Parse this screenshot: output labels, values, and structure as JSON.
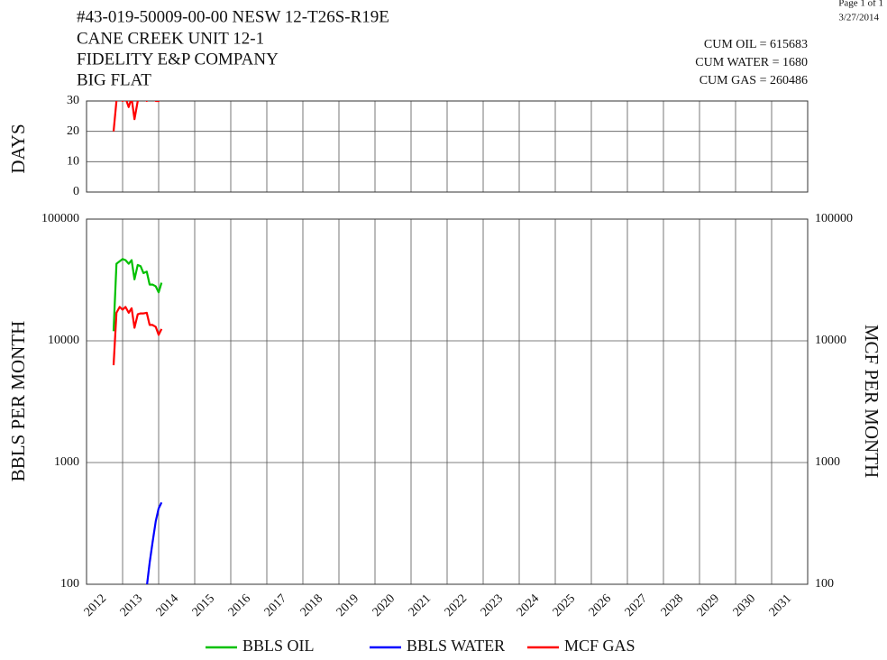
{
  "header": {
    "lines": [
      "#43-019-50009-00-00   NESW 12-T26S-R19E",
      "CANE CREEK UNIT 12-1",
      "FIDELITY E&P COMPANY",
      "BIG FLAT"
    ],
    "page": "Page 1 of 1",
    "date": "3/27/2014",
    "cum": [
      "CUM OIL = 615683",
      "CUM WATER = 1680",
      "CUM GAS = 260486"
    ]
  },
  "chart_data": [
    {
      "type": "line",
      "ylabel": "DAYS",
      "x": [
        2012.75,
        2012.83,
        2012.92,
        2013.0,
        2013.08,
        2013.17,
        2013.25,
        2013.33,
        2013.42,
        2013.5,
        2013.58,
        2013.67,
        2013.75,
        2013.83,
        2013.92,
        2014.0,
        2014.08
      ],
      "values": [
        20,
        30,
        31,
        30,
        31,
        28,
        31,
        24,
        30,
        31,
        31,
        30,
        31,
        31,
        30,
        30,
        31
      ],
      "color": "#ff0000",
      "xlim": [
        2012,
        2032
      ],
      "ylim": [
        0,
        30
      ],
      "yticks": [
        0,
        10,
        20,
        30
      ],
      "grid": true
    },
    {
      "type": "line",
      "ylabel": "BBLS PER MONTH",
      "y2label": "MCF PER MONTH",
      "log": true,
      "x": [
        2012.75,
        2012.83,
        2012.92,
        2013.0,
        2013.08,
        2013.17,
        2013.25,
        2013.33,
        2013.42,
        2013.5,
        2013.58,
        2013.67,
        2013.75,
        2013.83,
        2013.92,
        2014.0,
        2014.08
      ],
      "series": [
        {
          "name": "BBLS OIL",
          "color": "#00c000",
          "values": [
            12000,
            43000,
            45000,
            47000,
            46000,
            43000,
            46000,
            32000,
            42000,
            41000,
            36000,
            37000,
            29000,
            29000,
            28000,
            25000,
            30000
          ]
        },
        {
          "name": "BBLS WATER",
          "color": "#0000ff",
          "values": [
            null,
            null,
            null,
            null,
            null,
            null,
            null,
            null,
            null,
            null,
            90,
            95,
            150,
            220,
            330,
            420,
            470
          ]
        },
        {
          "name": "MCF GAS",
          "color": "#ff0000",
          "axis": "y2",
          "values": [
            6300,
            17000,
            19000,
            18000,
            19000,
            17000,
            18500,
            12800,
            16500,
            16800,
            16800,
            17000,
            13500,
            13500,
            13000,
            11200,
            12500
          ]
        }
      ],
      "xlim": [
        2012,
        2032
      ],
      "xticks": [
        2012,
        2013,
        2014,
        2015,
        2016,
        2017,
        2018,
        2019,
        2020,
        2021,
        2022,
        2023,
        2024,
        2025,
        2026,
        2027,
        2028,
        2029,
        2030,
        2031
      ],
      "ylim": [
        100,
        100000
      ],
      "yticks": [
        100,
        1000,
        10000,
        100000
      ],
      "y2lim": [
        100,
        100000
      ],
      "y2ticks": [
        100,
        1000,
        10000,
        100000
      ],
      "grid": true,
      "legend": "bottom"
    }
  ]
}
